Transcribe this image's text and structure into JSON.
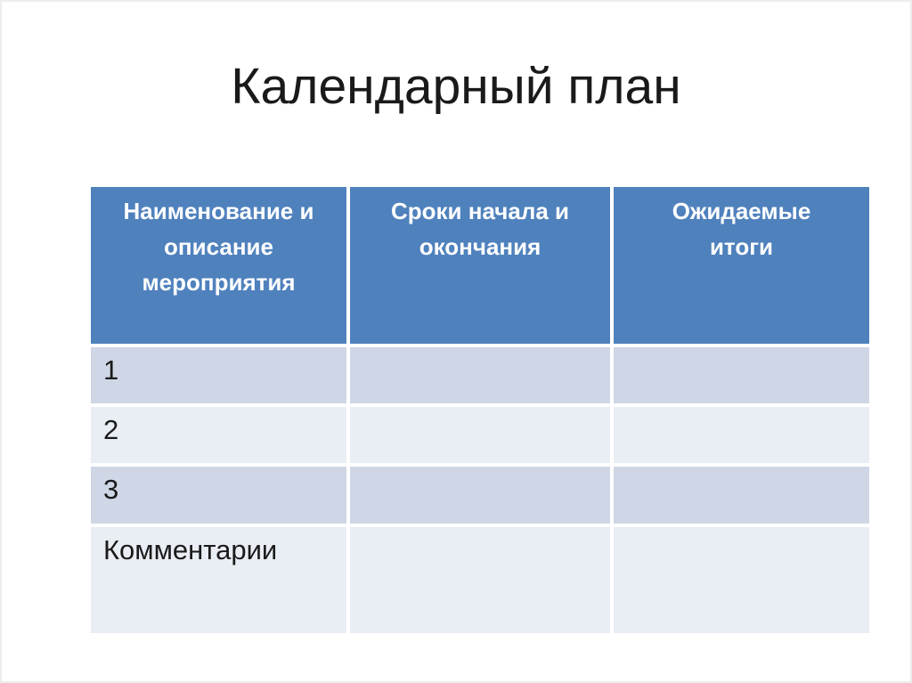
{
  "slide": {
    "title": "Календарный план",
    "colors": {
      "header_bg": "#4f81bd",
      "header_text": "#ffffff",
      "band_dark": "#cfd6e5",
      "band_light": "#e9edf4",
      "body_text": "#1a1a1a"
    },
    "table": {
      "headers": [
        {
          "lines": [
            "Наименование и",
            "описание",
            "мероприятия"
          ]
        },
        {
          "lines": [
            "Сроки начала и",
            "окончания"
          ]
        },
        {
          "lines": [
            "Ожидаемые",
            "итоги"
          ]
        }
      ],
      "rows": [
        {
          "label": "1",
          "start_end": "",
          "results": ""
        },
        {
          "label": "2",
          "start_end": "",
          "results": ""
        },
        {
          "label": "3",
          "start_end": "",
          "results": ""
        },
        {
          "label": "Комментарии",
          "start_end": "",
          "results": ""
        }
      ]
    }
  }
}
